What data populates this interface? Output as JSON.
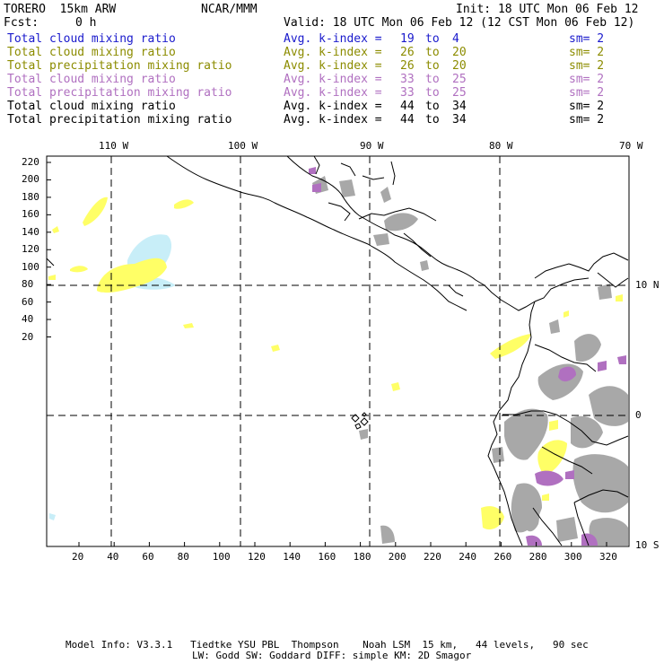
{
  "header": {
    "model": "TORERO  15km ARW",
    "org": "NCAR/MMM",
    "init": "Init: 18 UTC Mon 06 Feb 12",
    "fcst_label": "Fcst:",
    "fcst_value": "0 h",
    "valid": "Valid: 18 UTC Mon 06 Feb 12 (12 CST Mon 06 Feb 12)"
  },
  "legend": [
    {
      "field": "Total cloud mixing ratio",
      "stat": "Avg. k-index =",
      "v1": "19",
      "to": "to",
      "v2": "4",
      "sm": "sm= 2",
      "color": "#1a1acc"
    },
    {
      "field": "Total cloud mixing ratio",
      "stat": "Avg. k-index =",
      "v1": "26",
      "to": "to",
      "v2": "20",
      "sm": "sm= 2",
      "color": "#8c8c00"
    },
    {
      "field": "Total precipitation mixing ratio",
      "stat": "Avg. k-index =",
      "v1": "26",
      "to": "to",
      "v2": "20",
      "sm": "sm= 2",
      "color": "#8c8c00"
    },
    {
      "field": "Total cloud mixing ratio",
      "stat": "Avg. k-index =",
      "v1": "33",
      "to": "to",
      "v2": "25",
      "sm": "sm= 2",
      "color": "#b070c0"
    },
    {
      "field": "Total precipitation mixing ratio",
      "stat": "Avg. k-index =",
      "v1": "33",
      "to": "to",
      "v2": "25",
      "sm": "sm= 2",
      "color": "#b070c0"
    },
    {
      "field": "Total cloud mixing ratio",
      "stat": "Avg. k-index =",
      "v1": "44",
      "to": "to",
      "v2": "34",
      "sm": "sm= 2",
      "color": "#000000"
    },
    {
      "field": "Total precipitation mixing ratio",
      "stat": "Avg. k-index =",
      "v1": "44",
      "to": "to",
      "v2": "34",
      "sm": "sm= 2",
      "color": "#000000"
    }
  ],
  "axes": {
    "lon_labels": [
      "110 W",
      "100 W",
      "90 W",
      "80 W",
      "70 W"
    ],
    "lat_labels": [
      "10 N",
      "0",
      "10 S"
    ],
    "y_ticks": [
      "220",
      "200",
      "180",
      "160",
      "140",
      "120",
      "100",
      "80",
      "60",
      "40",
      "20"
    ],
    "x_ticks": [
      "20",
      "40",
      "60",
      "80",
      "100",
      "120",
      "140",
      "160",
      "180",
      "200",
      "220",
      "240",
      "260",
      "280",
      "300",
      "320"
    ]
  },
  "footer": {
    "line1": "Model Info: V3.3.1   Tiedtke YSU PBL  Thompson    Noah LSM  15 km,   44 levels,   90 sec",
    "line2": "LW: Godd SW: Goddard DIFF: simple KM: 2D Smagor"
  },
  "colors": {
    "yellow": "#ffff66",
    "lightblue": "#c8eef8",
    "gray": "#a8a8a8",
    "purple": "#b070c0",
    "coast": "#000000"
  }
}
